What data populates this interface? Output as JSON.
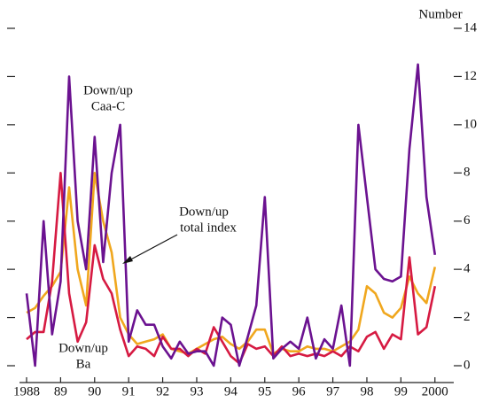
{
  "chart_data": {
    "type": "line",
    "y_axis_label": "Number",
    "annotations": [
      {
        "lines": [
          "Down/up",
          "Caa-C"
        ]
      },
      {
        "lines": [
          "Down/up",
          "total index"
        ]
      },
      {
        "lines": [
          "Down/up",
          "Ba"
        ]
      }
    ],
    "x": [
      1988.0,
      1988.25,
      1988.5,
      1988.75,
      1989.0,
      1989.25,
      1989.5,
      1989.75,
      1990.0,
      1990.25,
      1990.5,
      1990.75,
      1991.0,
      1991.25,
      1991.5,
      1991.75,
      1992.0,
      1992.25,
      1992.5,
      1992.75,
      1993.0,
      1993.25,
      1993.5,
      1993.75,
      1994.0,
      1994.25,
      1994.5,
      1994.75,
      1995.0,
      1995.25,
      1995.5,
      1995.75,
      1996.0,
      1996.25,
      1996.5,
      1996.75,
      1997.0,
      1997.25,
      1997.5,
      1997.75,
      1998.0,
      1998.25,
      1998.5,
      1998.75,
      1999.0,
      1999.25,
      1999.5,
      1999.75,
      2000.0
    ],
    "series": [
      {
        "name": "Down/up Caa-C",
        "color": "#6b1290",
        "values": [
          3,
          0,
          6,
          1.3,
          3.5,
          12,
          6,
          4,
          9.5,
          4.3,
          8,
          10,
          1,
          2.3,
          1.7,
          1.7,
          0.8,
          0.3,
          1,
          0.5,
          0.6,
          0.6,
          0,
          2,
          1.7,
          0,
          1.2,
          2.5,
          7,
          0.3,
          0.7,
          1,
          0.7,
          2,
          0.3,
          1.1,
          0.7,
          2.5,
          0,
          10,
          7,
          4,
          3.6,
          3.5,
          3.7,
          9,
          12.5,
          7,
          4.6
        ]
      },
      {
        "name": "Down/up total index",
        "color": "#f0a71e",
        "values": [
          2.2,
          2.4,
          2.9,
          3.3,
          3.9,
          7.4,
          4,
          2.5,
          8,
          6,
          4.7,
          2,
          1.3,
          0.9,
          1,
          1.1,
          1.3,
          0.7,
          0.6,
          0.5,
          0.7,
          0.9,
          1.1,
          1.2,
          0.9,
          0.7,
          1,
          1.5,
          1.5,
          0.5,
          0.7,
          0.6,
          0.6,
          0.8,
          0.7,
          0.7,
          0.6,
          0.8,
          1,
          1.5,
          3.3,
          3,
          2.2,
          2,
          2.4,
          3.7,
          3,
          2.6,
          4.1
        ]
      },
      {
        "name": "Down/up Ba",
        "color": "#d61a42",
        "values": [
          1.1,
          1.4,
          1.4,
          3.5,
          8,
          3,
          1,
          1.8,
          5,
          3.6,
          3,
          1.5,
          0.4,
          0.8,
          0.7,
          0.4,
          1.2,
          0.7,
          0.7,
          0.4,
          0.7,
          0.5,
          1.6,
          1,
          0.4,
          0.1,
          0.9,
          0.7,
          0.8,
          0.4,
          0.8,
          0.4,
          0.5,
          0.4,
          0.5,
          0.4,
          0.6,
          0.4,
          0.8,
          0.6,
          1.2,
          1.4,
          0.7,
          1.3,
          1.1,
          4.5,
          1.3,
          1.6,
          3.3
        ]
      }
    ],
    "xlim": [
      1987.8,
      2000.6
    ],
    "xticks": [
      1988,
      {
        "value": 1989,
        "label": "89"
      },
      {
        "value": 1990,
        "label": "90"
      },
      {
        "value": 1991,
        "label": "91"
      },
      {
        "value": 1992,
        "label": "92"
      },
      {
        "value": 1993,
        "label": "93"
      },
      {
        "value": 1994,
        "label": "94"
      },
      {
        "value": 1995,
        "label": "95"
      },
      {
        "value": 1996,
        "label": "96"
      },
      {
        "value": 1997,
        "label": "97"
      },
      {
        "value": 1998,
        "label": "98"
      },
      {
        "value": 1999,
        "label": "99"
      },
      2000
    ],
    "ylim": [
      0,
      14
    ],
    "yticks": [
      0,
      2,
      4,
      6,
      8,
      10,
      12,
      14
    ]
  }
}
